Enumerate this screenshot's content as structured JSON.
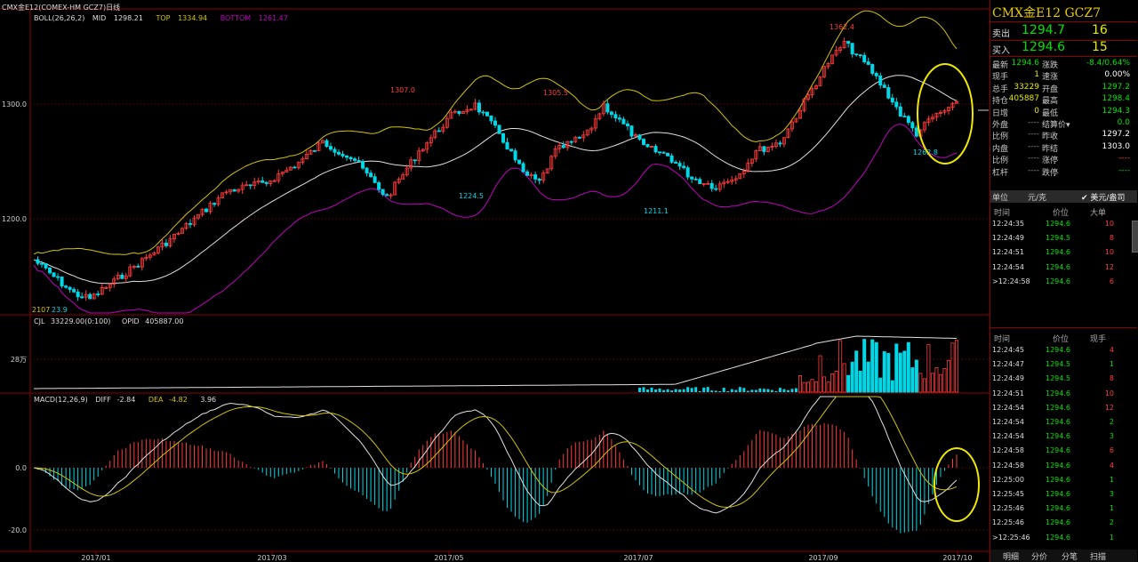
{
  "window_title": "CMX金E12(COMEX-HM GCZ7)日线",
  "boll": {
    "label": "BOLL(26,26,2)",
    "mid_label": "MID",
    "mid": "1298.21",
    "top_label": "TOP",
    "top": "1334.94",
    "bottom_label": "BOTTOM",
    "bottom": "1261.47"
  },
  "price_axis": {
    "tick_1": "1300.0",
    "tick_2": "1200.0"
  },
  "annotations": {
    "high_1": "1307.0",
    "high_2": "1305.5",
    "high_3": "1362.4",
    "low_1": "1224.5",
    "low_2": "1211.1",
    "low_3": "1262.8",
    "low_left": "23.9",
    "low_left_prefix": "2107"
  },
  "volume": {
    "label": "CJL",
    "cjl": "33229.00(0:100)",
    "opid_label": "OPID",
    "opid": "405887.00",
    "tick": "28万"
  },
  "macd": {
    "label": "MACD(12,26,9)",
    "diff_label": "DIFF",
    "diff": "-2.84",
    "dea_label": "DEA",
    "dea": "-4.82",
    "macd": "3.96",
    "tick_1": "0.0",
    "tick_2": "-20.0"
  },
  "x_axis": {
    "d1": "2017/01",
    "d2": "2017/03",
    "d3": "2017/05",
    "d4": "2017/07",
    "d5": "2017/09",
    "d6": "2017/10"
  },
  "colors": {
    "up": "#ff3c3c",
    "down": "#00d8e8",
    "mid": "#e0e0e0",
    "top": "#d4c400",
    "bottom": "#c000c0",
    "grid": "#8b0000",
    "highlight": "#f0e800"
  },
  "panel": {
    "title": "CMX金E12  GCZ7",
    "sell_label": "卖出",
    "sell_price": "1294.7",
    "sell_vol": "16",
    "buy_label": "买入",
    "buy_price": "1294.6",
    "buy_vol": "15",
    "stats": [
      {
        "l1": "最新",
        "v1": "1294.6",
        "c1": "#00e000",
        "l2": "涨跌",
        "v2": "-8.4/0.64%",
        "c2": "#00e000"
      },
      {
        "l1": "现手",
        "v1": "1",
        "c1": "#e8e800",
        "l2": "速涨",
        "v2": "0.00%",
        "c2": "#ffffff"
      },
      {
        "l1": "总手",
        "v1": "33229",
        "c1": "#e8e800",
        "l2": "开盘",
        "v2": "1297.2",
        "c2": "#00e000"
      },
      {
        "l1": "持仓",
        "v1": "405887",
        "c1": "#e8e800",
        "l2": "最高",
        "v2": "1298.4",
        "c2": "#00e000"
      },
      {
        "l1": "日增",
        "v1": "0",
        "c1": "#e8e800",
        "l2": "最低",
        "v2": "1294.3",
        "c2": "#00e000"
      },
      {
        "l1": "外盘",
        "v1": "----",
        "c1": "#888888",
        "l2": "结算价▾",
        "v2": "0.0",
        "c2": "#00e000"
      },
      {
        "l1": "比例",
        "v1": "----",
        "c1": "#888888",
        "l2": "昨收",
        "v2": "1297.2",
        "c2": "#ffffff"
      },
      {
        "l1": "内盘",
        "v1": "----",
        "c1": "#888888",
        "l2": "昨结",
        "v2": "1303.0",
        "c2": "#ffffff"
      },
      {
        "l1": "比例",
        "v1": "----",
        "c1": "#888888",
        "l2": "涨停",
        "v2": "----",
        "c2": "#ff3c3c"
      },
      {
        "l1": "杠杆",
        "v1": "----",
        "c1": "#888888",
        "l2": "跌停",
        "v2": "----",
        "c2": "#00e000"
      }
    ],
    "unit_label": "单位",
    "unit_value": "元/克",
    "usd_label": "✔ 美元/盎司",
    "table1_headers": {
      "time": "时间",
      "price": "价位",
      "size": "大单"
    },
    "table1": [
      {
        "time": "12:24:35",
        "price": "1294.6",
        "size": "10"
      },
      {
        "time": "12:24:49",
        "price": "1294.5",
        "size": "8"
      },
      {
        "time": "12:24:51",
        "price": "1294.6",
        "size": "10"
      },
      {
        "time": "12:24:54",
        "price": "1294.6",
        "size": "12"
      },
      {
        "time": ">12:24:58",
        "price": "1294.6",
        "size": "6"
      }
    ],
    "table2_headers": {
      "time": "时间",
      "price": "价位",
      "size": "现手"
    },
    "table2": [
      {
        "time": "12:24:45",
        "price": "1294.6",
        "size": "4"
      },
      {
        "time": "12:24:47",
        "price": "1294.5",
        "size": "1"
      },
      {
        "time": "12:24:49",
        "price": "1294.5",
        "size": "8"
      },
      {
        "time": "12:24:51",
        "price": "1294.6",
        "size": "10"
      },
      {
        "time": "12:24:54",
        "price": "1294.6",
        "size": "12"
      },
      {
        "time": "12:24:54",
        "price": "1294.6",
        "size": "2"
      },
      {
        "time": "12:24:54",
        "price": "1294.6",
        "size": "3"
      },
      {
        "time": "12:24:58",
        "price": "1294.6",
        "size": "6"
      },
      {
        "time": "12:24:58",
        "price": "1294.6",
        "size": "4"
      },
      {
        "time": "12:25:00",
        "price": "1294.6",
        "size": "1"
      },
      {
        "time": "12:25:45",
        "price": "1294.6",
        "size": "3"
      },
      {
        "time": "12:25:46",
        "price": "1294.6",
        "size": "1"
      },
      {
        "time": "12:25:46",
        "price": "1294.6",
        "size": "2"
      },
      {
        "time": ">12:25:46",
        "price": "1294.6",
        "size": "1"
      }
    ],
    "tabs": {
      "t1": "明细",
      "t2": "分价",
      "t3": "分笔",
      "t4": "扫描"
    }
  },
  "chart_data": {
    "type": "candlestick",
    "title": "CMX金E12(COMEX-HM GCZ7)日线",
    "x": [
      "2017/01",
      "2017/03",
      "2017/05",
      "2017/07",
      "2017/09",
      "2017/10"
    ],
    "price_ylim": [
      1165,
      1372
    ],
    "price_key_points": [
      {
        "date": "2016-12",
        "close": 1140
      },
      {
        "date": "2017-01",
        "close": 1175
      },
      {
        "date": "2017-02",
        "close": 1252
      },
      {
        "date": "2017-03",
        "close": 1210
      },
      {
        "date": "2017-04",
        "close": 1287
      },
      {
        "date": "2017-04-17",
        "high": 1307.0
      },
      {
        "date": "2017-05-09",
        "low": 1224.5
      },
      {
        "date": "2017-06-06",
        "high": 1305.5
      },
      {
        "date": "2017-07-10",
        "low": 1211.1
      },
      {
        "date": "2017-08",
        "close": 1290
      },
      {
        "date": "2017-09-08",
        "high": 1362.4
      },
      {
        "date": "2017-10-06",
        "low": 1262.8
      },
      {
        "date": "2017-10-13",
        "close": 1294.6
      }
    ],
    "boll": {
      "mid": 1298.21,
      "top": 1334.94,
      "bottom": 1261.47
    },
    "volume": {
      "cjl": 33229.0,
      "opid": 405887.0,
      "axis_tick": "28万"
    },
    "macd": {
      "diff": -2.84,
      "dea": -4.82,
      "macd": 3.96,
      "ylim": [
        -25,
        12
      ]
    }
  }
}
